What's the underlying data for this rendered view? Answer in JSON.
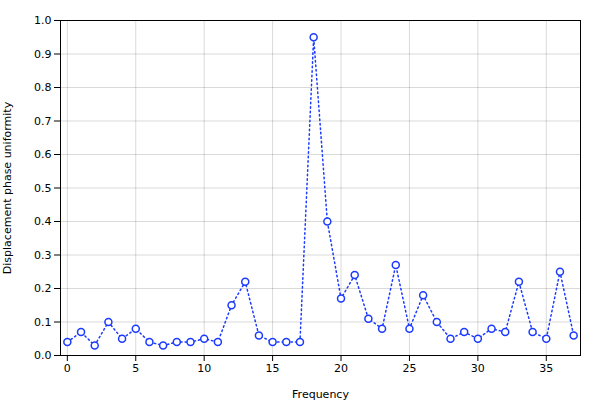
{
  "chart_data": {
    "type": "line",
    "xlabel": "Frequency",
    "ylabel": "Displacement phase uniformity",
    "x": [
      0,
      1,
      2,
      3,
      4,
      5,
      6,
      7,
      8,
      9,
      10,
      11,
      12,
      13,
      14,
      15,
      16,
      17,
      18,
      19,
      20,
      21,
      22,
      23,
      24,
      25,
      26,
      27,
      28,
      29,
      30,
      31,
      32,
      33,
      34,
      35,
      36,
      37
    ],
    "values": [
      0.04,
      0.07,
      0.03,
      0.1,
      0.05,
      0.08,
      0.04,
      0.03,
      0.04,
      0.04,
      0.05,
      0.04,
      0.15,
      0.22,
      0.06,
      0.04,
      0.04,
      0.04,
      0.95,
      0.4,
      0.17,
      0.24,
      0.11,
      0.08,
      0.27,
      0.08,
      0.18,
      0.1,
      0.05,
      0.07,
      0.05,
      0.08,
      0.07,
      0.22,
      0.07,
      0.05,
      0.25,
      0.06
    ],
    "xlim": [
      -0.5,
      37.5
    ],
    "ylim": [
      0,
      1.0
    ],
    "xticks": [
      0,
      5,
      10,
      15,
      20,
      25,
      30,
      35
    ],
    "yticks": [
      {
        "value": 0,
        "label": "0.0"
      },
      0.1,
      0.2,
      0.3,
      0.4,
      0.5,
      0.6,
      0.7,
      0.8,
      0.9,
      {
        "value": 1.0,
        "label": "1.0"
      }
    ],
    "grid": true,
    "color": "#1a3aff",
    "marker": "circle",
    "line_style": "dotted"
  }
}
